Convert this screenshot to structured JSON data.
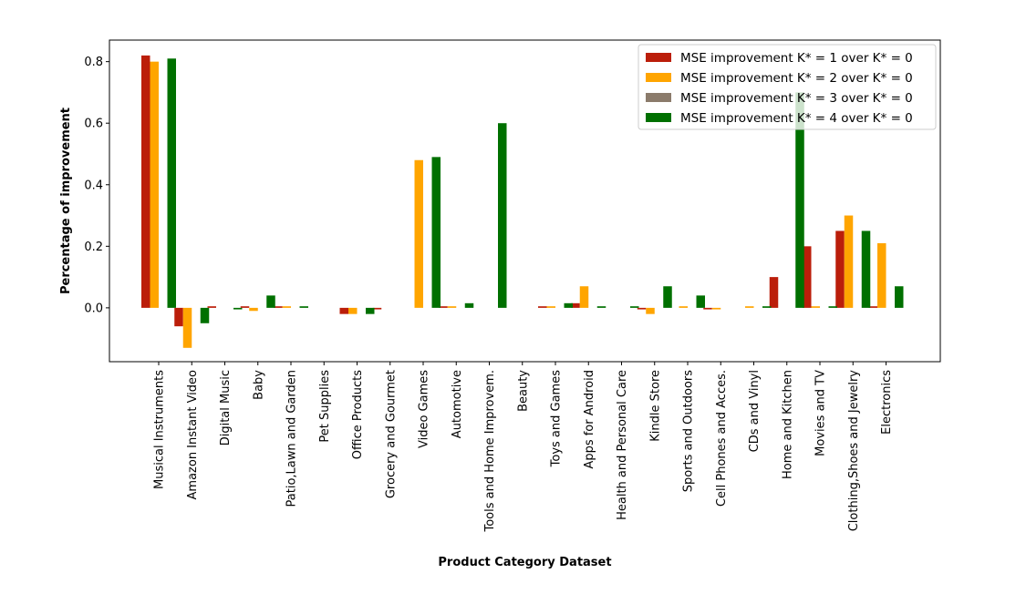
{
  "chart_data": {
    "type": "bar",
    "title": "",
    "xlabel": "Product Category Dataset",
    "ylabel": "Percentage of improvement",
    "ylim": [
      -0.175,
      0.87
    ],
    "yticks": [
      0.0,
      0.2,
      0.4,
      0.6,
      0.8
    ],
    "ytick_labels": [
      "0.0",
      "0.2",
      "0.4",
      "0.6",
      "0.8"
    ],
    "grid": false,
    "legend_position": "top-right",
    "categories": [
      "Musical Instruments",
      "Amazon Instant Video",
      "Digital Music",
      "Baby",
      "Patio,Lawn and Garden",
      "Pet Supplies",
      "Office Products",
      "Grocery and Gourmet",
      "Video Games",
      "Automotive",
      "Tools and Home Improvem.",
      "Beauty",
      "Toys and Games",
      "Apps for Android",
      "Health and Personal Care",
      "Kindle Store",
      "Sports and Outdoors",
      "Cell Phones and Acces.",
      "CDs and Vinyl",
      "Home and Kitchen",
      "Movies and TV",
      "Clothing,Shoes and Jewelry",
      "Electronics"
    ],
    "series": [
      {
        "name": "MSE improvement K* = 1 over K* = 0",
        "color": "#bb1e0a",
        "values": [
          0.82,
          -0.06,
          0.005,
          0.005,
          0.005,
          0.0,
          -0.02,
          -0.005,
          0.0,
          0.005,
          0.0,
          0.0,
          0.005,
          0.015,
          0.0,
          -0.005,
          0.0,
          -0.005,
          0.0,
          0.1,
          0.2,
          0.25,
          0.005
        ]
      },
      {
        "name": "MSE improvement K* = 2 over K* = 0",
        "color": "#ffa500",
        "values": [
          0.8,
          -0.13,
          0.0,
          -0.01,
          0.005,
          0.0,
          -0.02,
          0.0,
          0.48,
          0.005,
          0.0,
          0.0,
          0.005,
          0.07,
          0.0,
          -0.02,
          0.005,
          -0.005,
          0.005,
          0.0,
          0.005,
          0.3,
          0.21
        ]
      },
      {
        "name": "MSE improvement K* = 3 over K* = 0",
        "color": "#8b7b6b",
        "values": [
          0.0,
          0.0,
          0.0,
          0.0,
          0.0,
          0.0,
          0.0,
          0.0,
          0.0,
          0.0,
          0.0,
          0.0,
          0.0,
          0.0,
          0.0,
          0.0,
          0.0,
          0.0,
          0.0,
          0.0,
          0.0,
          0.0,
          0.0
        ]
      },
      {
        "name": "MSE improvement K* = 4 over K* = 0",
        "color": "#007000",
        "values": [
          0.81,
          -0.05,
          -0.005,
          0.04,
          0.005,
          0.0,
          -0.02,
          0.0,
          0.49,
          0.015,
          0.6,
          0.0,
          0.015,
          0.005,
          0.005,
          0.07,
          0.04,
          0.0,
          0.005,
          0.7,
          0.005,
          0.25,
          0.07
        ]
      }
    ]
  }
}
